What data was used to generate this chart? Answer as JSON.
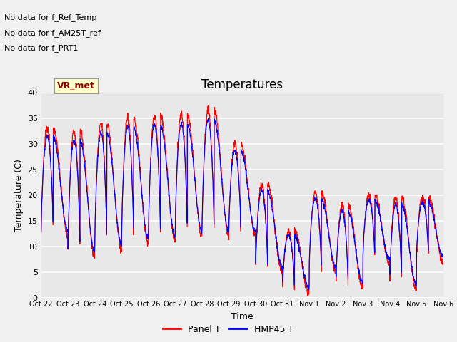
{
  "title": "Temperatures",
  "xlabel": "Time",
  "ylabel": "Temperature (C)",
  "ylim": [
    0,
    40
  ],
  "ytick_values": [
    0,
    5,
    10,
    15,
    20,
    25,
    30,
    35,
    40
  ],
  "xtick_labels": [
    "Oct 22",
    "Oct 23",
    "Oct 24",
    "Oct 25",
    "Oct 26",
    "Oct 27",
    "Oct 28",
    "Oct 29",
    "Oct 30",
    "Oct 31",
    "Nov 1",
    "Nov 2",
    "Nov 3",
    "Nov 4",
    "Nov 5",
    "Nov 6"
  ],
  "panel_color": "#ff0000",
  "hmp45_color": "#0000ff",
  "plot_bg_color": "#e8e8e8",
  "fig_bg_color": "#f0f0f0",
  "grid_color": "#ffffff",
  "no_data_texts": [
    "No data for f_Ref_Temp",
    "No data for f_AM25T_ref",
    "No data for f_PRT1"
  ],
  "vr_met_text": "VR_met",
  "legend_panel": "Panel T",
  "legend_hmp45": "HMP45 T",
  "title_fontsize": 12,
  "label_fontsize": 9,
  "tick_fontsize": 8,
  "nodata_fontsize": 8
}
